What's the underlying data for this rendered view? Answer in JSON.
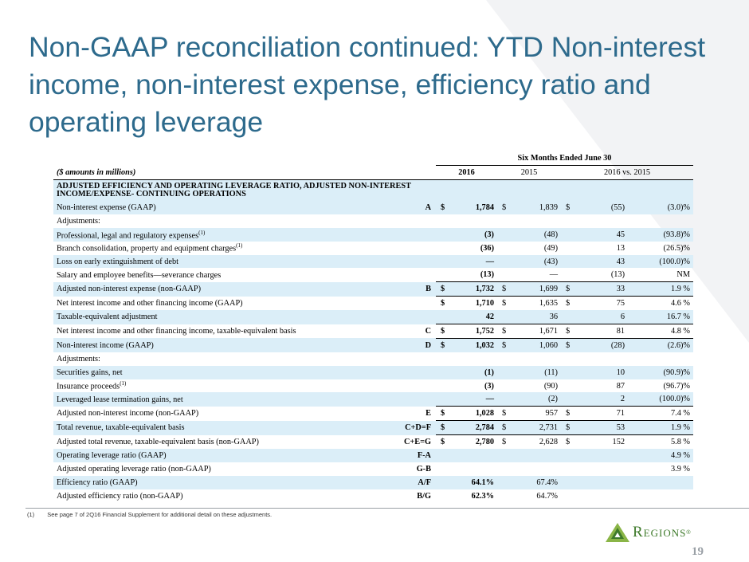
{
  "title": "Non-GAAP reconciliation continued:  YTD Non-interest income, non-interest expense, efficiency ratio and operating leverage",
  "table": {
    "period_header": "Six Months Ended June 30",
    "units_label": "($ amounts in millions)",
    "col_2016": "2016",
    "col_2015": "2015",
    "col_change": "2016 vs. 2015",
    "section_heading": "ADJUSTED EFFICIENCY AND OPERATING LEVERAGE RATIO, ADJUSTED NON-INTEREST INCOME/EXPENSE- CONTINUING OPERATIONS",
    "rows": [
      {
        "label": "Non-interest expense (GAAP)",
        "sup": "",
        "ref": "A",
        "d1": "$",
        "v2016": "1,784",
        "d2": "$",
        "v2015": "1,839",
        "d3": "$",
        "chg": "(55)",
        "pct": "(3.0)%"
      },
      {
        "label": "Adjustments:",
        "sup": "",
        "ref": "",
        "d1": "",
        "v2016": "",
        "d2": "",
        "v2015": "",
        "d3": "",
        "chg": "",
        "pct": ""
      },
      {
        "label": "Professional, legal and regulatory expenses",
        "sup": "(1)",
        "ref": "",
        "d1": "",
        "v2016": "(3)",
        "d2": "",
        "v2015": "(48)",
        "d3": "",
        "chg": "45",
        "pct": "(93.8)%"
      },
      {
        "label": "Branch consolidation, property and equipment charges",
        "sup": "(1)",
        "ref": "",
        "d1": "",
        "v2016": "(36)",
        "d2": "",
        "v2015": "(49)",
        "d3": "",
        "chg": "13",
        "pct": "(26.5)%"
      },
      {
        "label": "Loss on early extinguishment of debt",
        "sup": "",
        "ref": "",
        "d1": "",
        "v2016": "—",
        "d2": "",
        "v2015": "(43)",
        "d3": "",
        "chg": "43",
        "pct": "(100.0)%"
      },
      {
        "label": "Salary and employee benefits—severance charges",
        "sup": "",
        "ref": "",
        "d1": "",
        "v2016": "(13)",
        "d2": "",
        "v2015": "—",
        "d3": "",
        "chg": "(13)",
        "pct": "NM"
      },
      {
        "label": "Adjusted non-interest expense (non-GAAP)",
        "sup": "",
        "ref": "B",
        "d1": "$",
        "v2016": "1,732",
        "d2": "$",
        "v2015": "1,699",
        "d3": "$",
        "chg": "33",
        "pct": "1.9 %"
      },
      {
        "label": "Net interest income and other financing income (GAAP)",
        "sup": "",
        "ref": "",
        "d1": "$",
        "v2016": "1,710",
        "d2": "$",
        "v2015": "1,635",
        "d3": "$",
        "chg": "75",
        "pct": "4.6 %"
      },
      {
        "label": "Taxable-equivalent adjustment",
        "sup": "",
        "ref": "",
        "d1": "",
        "v2016": "42",
        "d2": "",
        "v2015": "36",
        "d3": "",
        "chg": "6",
        "pct": "16.7 %"
      },
      {
        "label": "Net interest income and other financing income, taxable-equivalent basis",
        "sup": "",
        "ref": "C",
        "d1": "$",
        "v2016": "1,752",
        "d2": "$",
        "v2015": "1,671",
        "d3": "$",
        "chg": "81",
        "pct": "4.8 %"
      },
      {
        "label": "Non-interest income (GAAP)",
        "sup": "",
        "ref": "D",
        "d1": "$",
        "v2016": "1,032",
        "d2": "$",
        "v2015": "1,060",
        "d3": "$",
        "chg": "(28)",
        "pct": "(2.6)%"
      },
      {
        "label": "Adjustments:",
        "sup": "",
        "ref": "",
        "d1": "",
        "v2016": "",
        "d2": "",
        "v2015": "",
        "d3": "",
        "chg": "",
        "pct": ""
      },
      {
        "label": "Securities gains, net",
        "sup": "",
        "ref": "",
        "d1": "",
        "v2016": "(1)",
        "d2": "",
        "v2015": "(11)",
        "d3": "",
        "chg": "10",
        "pct": "(90.9)%"
      },
      {
        "label": "Insurance proceeds",
        "sup": "(1)",
        "ref": "",
        "d1": "",
        "v2016": "(3)",
        "d2": "",
        "v2015": "(90)",
        "d3": "",
        "chg": "87",
        "pct": "(96.7)%"
      },
      {
        "label": "Leveraged lease termination gains, net",
        "sup": "",
        "ref": "",
        "d1": "",
        "v2016": "—",
        "d2": "",
        "v2015": "(2)",
        "d3": "",
        "chg": "2",
        "pct": "(100.0)%"
      },
      {
        "label": "Adjusted non-interest income (non-GAAP)",
        "sup": "",
        "ref": "E",
        "d1": "$",
        "v2016": "1,028",
        "d2": "$",
        "v2015": "957",
        "d3": "$",
        "chg": "71",
        "pct": "7.4 %"
      },
      {
        "label": "Total revenue, taxable-equivalent basis",
        "sup": "",
        "ref": "C+D=F",
        "d1": "$",
        "v2016": "2,784",
        "d2": "$",
        "v2015": "2,731",
        "d3": "$",
        "chg": "53",
        "pct": "1.9 %"
      },
      {
        "label": "Adjusted total revenue, taxable-equivalent basis (non-GAAP)",
        "sup": "",
        "ref": "C+E=G",
        "d1": "$",
        "v2016": "2,780",
        "d2": "$",
        "v2015": "2,628",
        "d3": "$",
        "chg": "152",
        "pct": "5.8 %"
      },
      {
        "label": "Operating leverage ratio (GAAP)",
        "sup": "",
        "ref": "F-A",
        "d1": "",
        "v2016": "",
        "d2": "",
        "v2015": "",
        "d3": "",
        "chg": "",
        "pct": "4.9 %"
      },
      {
        "label": "Adjusted operating leverage ratio (non-GAAP)",
        "sup": "",
        "ref": "G-B",
        "d1": "",
        "v2016": "",
        "d2": "",
        "v2015": "",
        "d3": "",
        "chg": "",
        "pct": "3.9 %"
      },
      {
        "label": "Efficiency ratio (GAAP)",
        "sup": "",
        "ref": "A/F",
        "d1": "",
        "v2016": "64.1%",
        "d2": "",
        "v2015": "67.4%",
        "d3": "",
        "chg": "",
        "pct": ""
      },
      {
        "label": "Adjusted efficiency ratio (non-GAAP)",
        "sup": "",
        "ref": "B/G",
        "d1": "",
        "v2016": "62.3%",
        "d2": "",
        "v2015": "64.7%",
        "d3": "",
        "chg": "",
        "pct": ""
      }
    ]
  },
  "footnote": {
    "marker": "(1)",
    "text": "See page 7 of 2Q16 Financial Supplement for additional detail on these adjustments."
  },
  "logo": {
    "text": "Regions",
    "mark": "®",
    "color": "#3e7a2a"
  },
  "page_number": "19"
}
